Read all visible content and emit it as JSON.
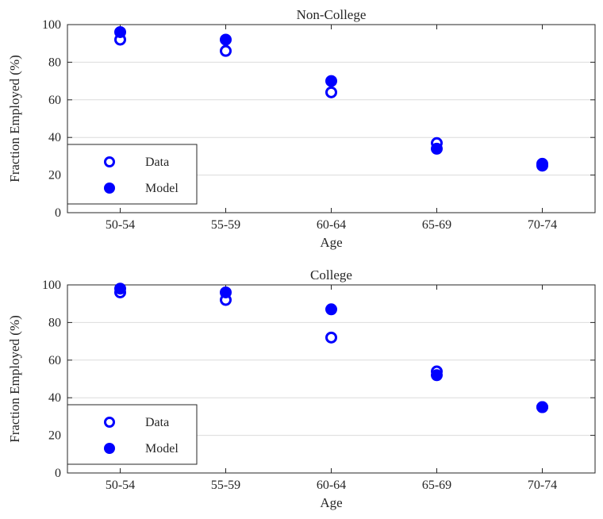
{
  "colors": {
    "marker": "#0000ff",
    "grid": "#dcdcdc",
    "axis": "#262626",
    "background": "#ffffff"
  },
  "chart_data": [
    {
      "type": "scatter",
      "title": "Non-College",
      "xlabel": "Age",
      "ylabel": "Fraction Employed (%)",
      "categories": [
        "50-54",
        "55-59",
        "60-64",
        "65-69",
        "70-74"
      ],
      "ylim": [
        0,
        100
      ],
      "yticks": [
        0,
        20,
        40,
        60,
        80,
        100
      ],
      "grid": "horizontal",
      "legend_position": "bottom-left",
      "series": [
        {
          "name": "Data",
          "marker": "open-circle",
          "values": [
            92,
            86,
            64,
            37,
            25
          ]
        },
        {
          "name": "Model",
          "marker": "filled-circle",
          "values": [
            96,
            92,
            70,
            34,
            26
          ]
        }
      ]
    },
    {
      "type": "scatter",
      "title": "College",
      "xlabel": "Age",
      "ylabel": "Fraction Employed (%)",
      "categories": [
        "50-54",
        "55-59",
        "60-64",
        "65-69",
        "70-74"
      ],
      "ylim": [
        0,
        100
      ],
      "yticks": [
        0,
        20,
        40,
        60,
        80,
        100
      ],
      "grid": "horizontal",
      "legend_position": "bottom-left",
      "series": [
        {
          "name": "Data",
          "marker": "open-circle",
          "values": [
            96,
            92,
            72,
            54,
            35
          ]
        },
        {
          "name": "Model",
          "marker": "filled-circle",
          "values": [
            98,
            96,
            87,
            52,
            35
          ]
        }
      ]
    }
  ]
}
